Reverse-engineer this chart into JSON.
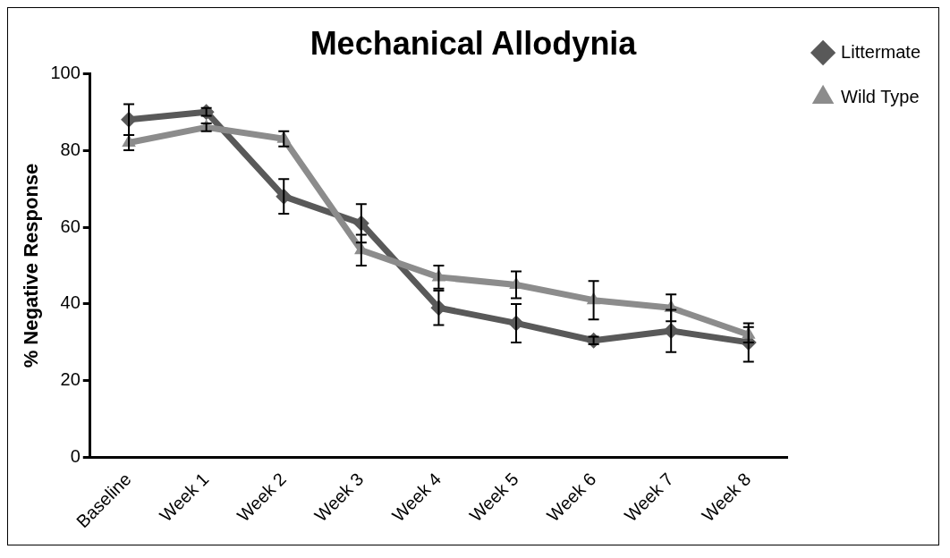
{
  "chart_data": {
    "type": "line",
    "title": "Mechanical Allodynia",
    "ylabel": "% Negative Response",
    "categories": [
      "Baseline",
      "Week 1",
      "Week 2",
      "Week 3",
      "Week 4",
      "Week 5",
      "Week 6",
      "Week 7",
      "Week 8"
    ],
    "series": [
      {
        "name": "Littermate",
        "color": "#595959",
        "marker": "diamond",
        "values": [
          88,
          90,
          68,
          61,
          39,
          35,
          30.5,
          33,
          30
        ],
        "errors": [
          4,
          1,
          4.5,
          5,
          4.5,
          5,
          1,
          5.5,
          5
        ]
      },
      {
        "name": "Wild Type",
        "color": "#8c8c8c",
        "marker": "triangle",
        "values": [
          82,
          86,
          83,
          54,
          47,
          45,
          41,
          39,
          32
        ],
        "errors": [
          2,
          1,
          2,
          4,
          3,
          3.5,
          5,
          3.5,
          2
        ]
      }
    ],
    "ylim": [
      0,
      100
    ],
    "yticks": [
      0,
      20,
      40,
      60,
      80,
      100
    ],
    "grid": false,
    "legend": "top right",
    "line_style": "solid"
  }
}
